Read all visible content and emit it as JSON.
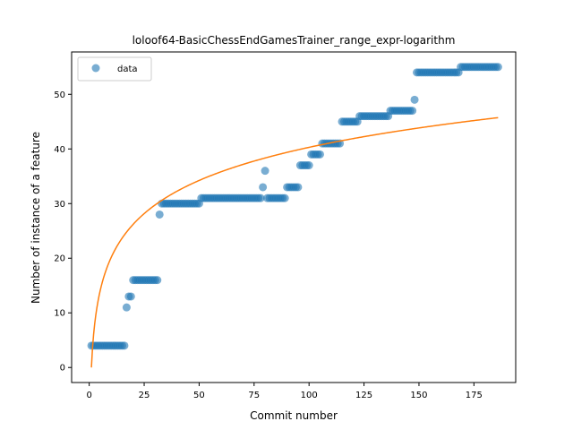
{
  "chart_data": {
    "type": "scatter",
    "title": "loloof64-BasicChessEndGamesTrainer_range_expr-logarithm",
    "xlabel": "Commit number",
    "ylabel": "Number of instance of a feature",
    "xlim": [
      -8,
      194
    ],
    "ylim": [
      -2.75,
      57.75
    ],
    "xticks": [
      0,
      25,
      50,
      75,
      100,
      125,
      150,
      175
    ],
    "yticks": [
      0,
      10,
      20,
      30,
      40,
      50
    ],
    "legend": {
      "placement": "top-left",
      "entries": [
        "data"
      ]
    },
    "colors": {
      "points": "#1f77b4",
      "fit": "#ff7f0e"
    },
    "series": [
      {
        "name": "data",
        "kind": "points",
        "segments": [
          {
            "x_start": 1,
            "x_end": 16,
            "y": 4
          },
          {
            "x_start": 17,
            "x_end": 17,
            "y": 11
          },
          {
            "x_start": 18,
            "x_end": 19,
            "y": 13
          },
          {
            "x_start": 20,
            "x_end": 31,
            "y": 16
          },
          {
            "x_start": 32,
            "x_end": 32,
            "y": 28
          },
          {
            "x_start": 33,
            "x_end": 50,
            "y": 30
          },
          {
            "x_start": 51,
            "x_end": 78,
            "y": 31
          },
          {
            "x_start": 79,
            "x_end": 79,
            "y": 33
          },
          {
            "x_start": 80,
            "x_end": 80,
            "y": 36
          },
          {
            "x_start": 81,
            "x_end": 89,
            "y": 31
          },
          {
            "x_start": 90,
            "x_end": 95,
            "y": 33
          },
          {
            "x_start": 96,
            "x_end": 100,
            "y": 37
          },
          {
            "x_start": 101,
            "x_end": 105,
            "y": 39
          },
          {
            "x_start": 106,
            "x_end": 114,
            "y": 41
          },
          {
            "x_start": 115,
            "x_end": 122,
            "y": 45
          },
          {
            "x_start": 123,
            "x_end": 136,
            "y": 46
          },
          {
            "x_start": 137,
            "x_end": 147,
            "y": 47
          },
          {
            "x_start": 148,
            "x_end": 148,
            "y": 49
          },
          {
            "x_start": 149,
            "x_end": 168,
            "y": 54
          },
          {
            "x_start": 169,
            "x_end": 186,
            "y": 55
          }
        ]
      },
      {
        "kind": "line",
        "model": "logarithmic fit",
        "x_range": [
          1,
          186
        ],
        "coefficients": {
          "a": 8.75,
          "b": 0.0
        }
      }
    ]
  }
}
